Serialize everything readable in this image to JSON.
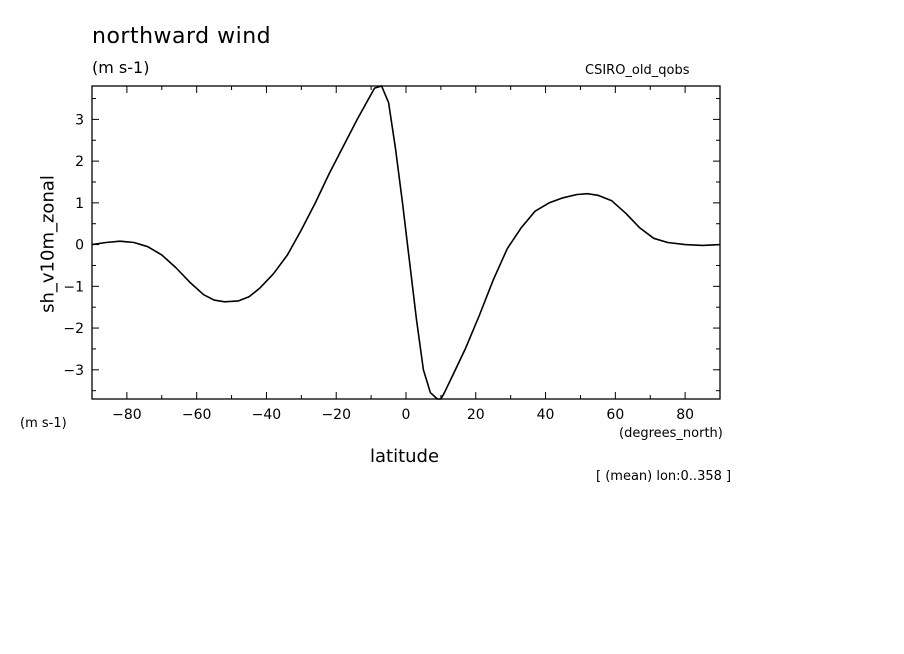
{
  "chart_data": {
    "type": "line",
    "title": "northward wind",
    "units": "(m s-1)",
    "source_label": "CSIRO_old_qobs",
    "ylabel": "sh_v10m_zonal",
    "yunits": "(m s-1)",
    "xlabel": "latitude",
    "xunits": "(degrees_north)",
    "note": "[ (mean) lon:0..358 ]",
    "xlim": [
      -90,
      90
    ],
    "ylim": [
      -3.7,
      3.8
    ],
    "x_ticks": [
      -80,
      -60,
      -40,
      -20,
      0,
      20,
      40,
      60,
      80
    ],
    "x_tick_labels": [
      "−80",
      "−60",
      "−40",
      "−20",
      "0",
      "20",
      "40",
      "60",
      "80"
    ],
    "y_ticks": [
      -3,
      -2,
      -1,
      0,
      1,
      2,
      3
    ],
    "y_tick_labels": [
      "−3",
      "−2",
      "−1",
      "0",
      "1",
      "2",
      "3"
    ],
    "grid": false,
    "series": [
      {
        "color": "#000000",
        "x": [
          -90,
          -86,
          -82,
          -78,
          -74,
          -70,
          -66,
          -62,
          -58,
          -55,
          -52,
          -48,
          -45,
          -42,
          -38,
          -34,
          -30,
          -26,
          -22,
          -18,
          -14,
          -11,
          -9,
          -7,
          -5,
          -3,
          -1,
          1,
          3,
          5,
          7,
          9,
          10,
          11,
          13,
          17,
          21,
          25,
          29,
          33,
          37,
          41,
          45,
          49,
          52,
          55,
          59,
          63,
          67,
          71,
          75,
          80,
          85,
          90
        ],
        "y": [
          0.0,
          0.05,
          0.08,
          0.05,
          -0.05,
          -0.25,
          -0.55,
          -0.9,
          -1.2,
          -1.33,
          -1.37,
          -1.35,
          -1.25,
          -1.05,
          -0.7,
          -0.25,
          0.35,
          1.0,
          1.7,
          2.35,
          3.0,
          3.45,
          3.75,
          3.8,
          3.4,
          2.3,
          1.0,
          -0.4,
          -1.8,
          -3.0,
          -3.55,
          -3.75,
          -3.7,
          -3.55,
          -3.2,
          -2.5,
          -1.7,
          -0.85,
          -0.1,
          0.4,
          0.8,
          1.0,
          1.12,
          1.2,
          1.22,
          1.18,
          1.05,
          0.75,
          0.4,
          0.15,
          0.05,
          0.0,
          -0.02,
          0.0
        ]
      }
    ]
  }
}
